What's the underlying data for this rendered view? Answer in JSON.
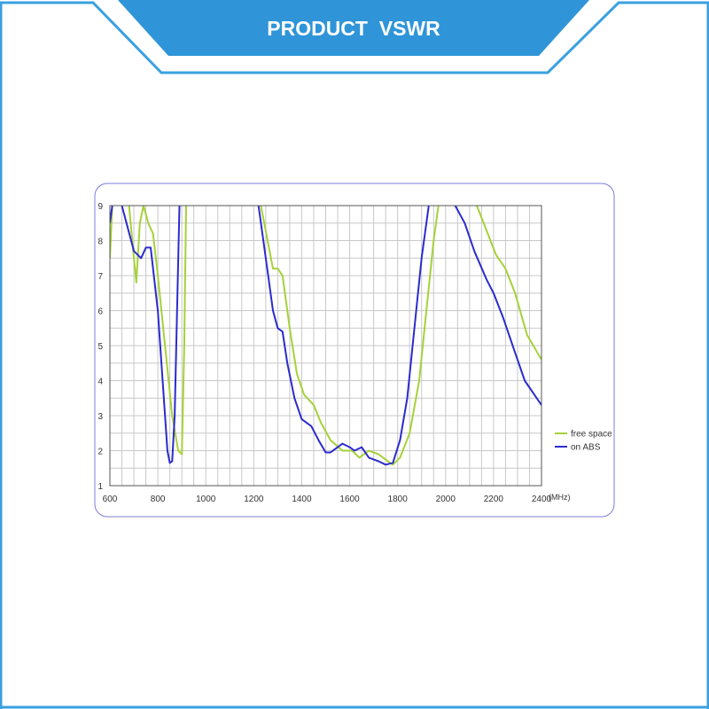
{
  "header_title": "PRODUCT  VSWR",
  "chart_data": {
    "type": "line",
    "x_label": "(MHz)",
    "xlim": [
      600,
      2400
    ],
    "xticks": [
      600,
      800,
      1000,
      1200,
      1400,
      1600,
      1800,
      2000,
      2200,
      2400
    ],
    "ylim": [
      1,
      9
    ],
    "yticks": [
      1,
      2,
      3,
      4,
      5,
      6,
      7,
      8,
      9
    ],
    "grid": true,
    "x_grid_subdivisions": 4,
    "y_grid_subdivisions": 2,
    "legend": "right",
    "series": [
      {
        "name": "free space",
        "color": "#a6d13a",
        "x": [
          600,
          610,
          640,
          680,
          700,
          710,
          725,
          740,
          760,
          780,
          800,
          830,
          860,
          885,
          900,
          910,
          918,
          1070,
          1230,
          1280,
          1300,
          1320,
          1350,
          1380,
          1410,
          1450,
          1480,
          1520,
          1570,
          1610,
          1640,
          1680,
          1720,
          1760,
          1780,
          1810,
          1850,
          1890,
          1920,
          1950,
          1970,
          2050,
          2130,
          2170,
          2210,
          2250,
          2290,
          2340,
          2400
        ],
        "values": [
          7.5,
          9,
          null,
          9,
          7.5,
          6.8,
          8.5,
          9,
          8.5,
          8.2,
          7,
          5,
          3,
          2,
          1.9,
          5,
          9,
          null,
          9,
          7.2,
          7.2,
          7,
          5.5,
          4.2,
          3.6,
          3.3,
          2.8,
          2.3,
          2.0,
          2.0,
          1.8,
          2.0,
          1.9,
          1.7,
          1.6,
          1.8,
          2.5,
          4,
          6,
          8,
          9,
          null,
          9,
          8.3,
          7.6,
          7.2,
          6.5,
          5.3,
          4.6
        ]
      },
      {
        "name": "on ABS",
        "color": "#2b2bcf",
        "x": [
          600,
          610,
          630,
          650,
          700,
          730,
          750,
          770,
          800,
          820,
          840,
          850,
          860,
          870,
          880,
          890,
          1050,
          1220,
          1260,
          1280,
          1300,
          1320,
          1340,
          1370,
          1400,
          1440,
          1470,
          1500,
          1520,
          1550,
          1570,
          1600,
          1620,
          1650,
          1680,
          1720,
          1750,
          1780,
          1810,
          1840,
          1870,
          1900,
          1930,
          1990,
          2040,
          2080,
          2120,
          2170,
          2200,
          2240,
          2290,
          2330,
          2400
        ],
        "values": [
          8.5,
          9,
          null,
          9,
          7.7,
          7.5,
          7.8,
          7.8,
          6,
          4,
          2,
          1.65,
          1.7,
          3,
          6,
          9,
          null,
          9,
          7,
          6,
          5.5,
          5.4,
          4.5,
          3.5,
          2.9,
          2.7,
          2.3,
          1.95,
          1.95,
          2.1,
          2.2,
          2.1,
          2.0,
          2.1,
          1.8,
          1.7,
          1.6,
          1.65,
          2.3,
          3.5,
          5.5,
          7.5,
          9,
          null,
          9,
          8.5,
          7.7,
          6.9,
          6.5,
          5.8,
          4.8,
          4,
          3.3
        ]
      }
    ]
  }
}
